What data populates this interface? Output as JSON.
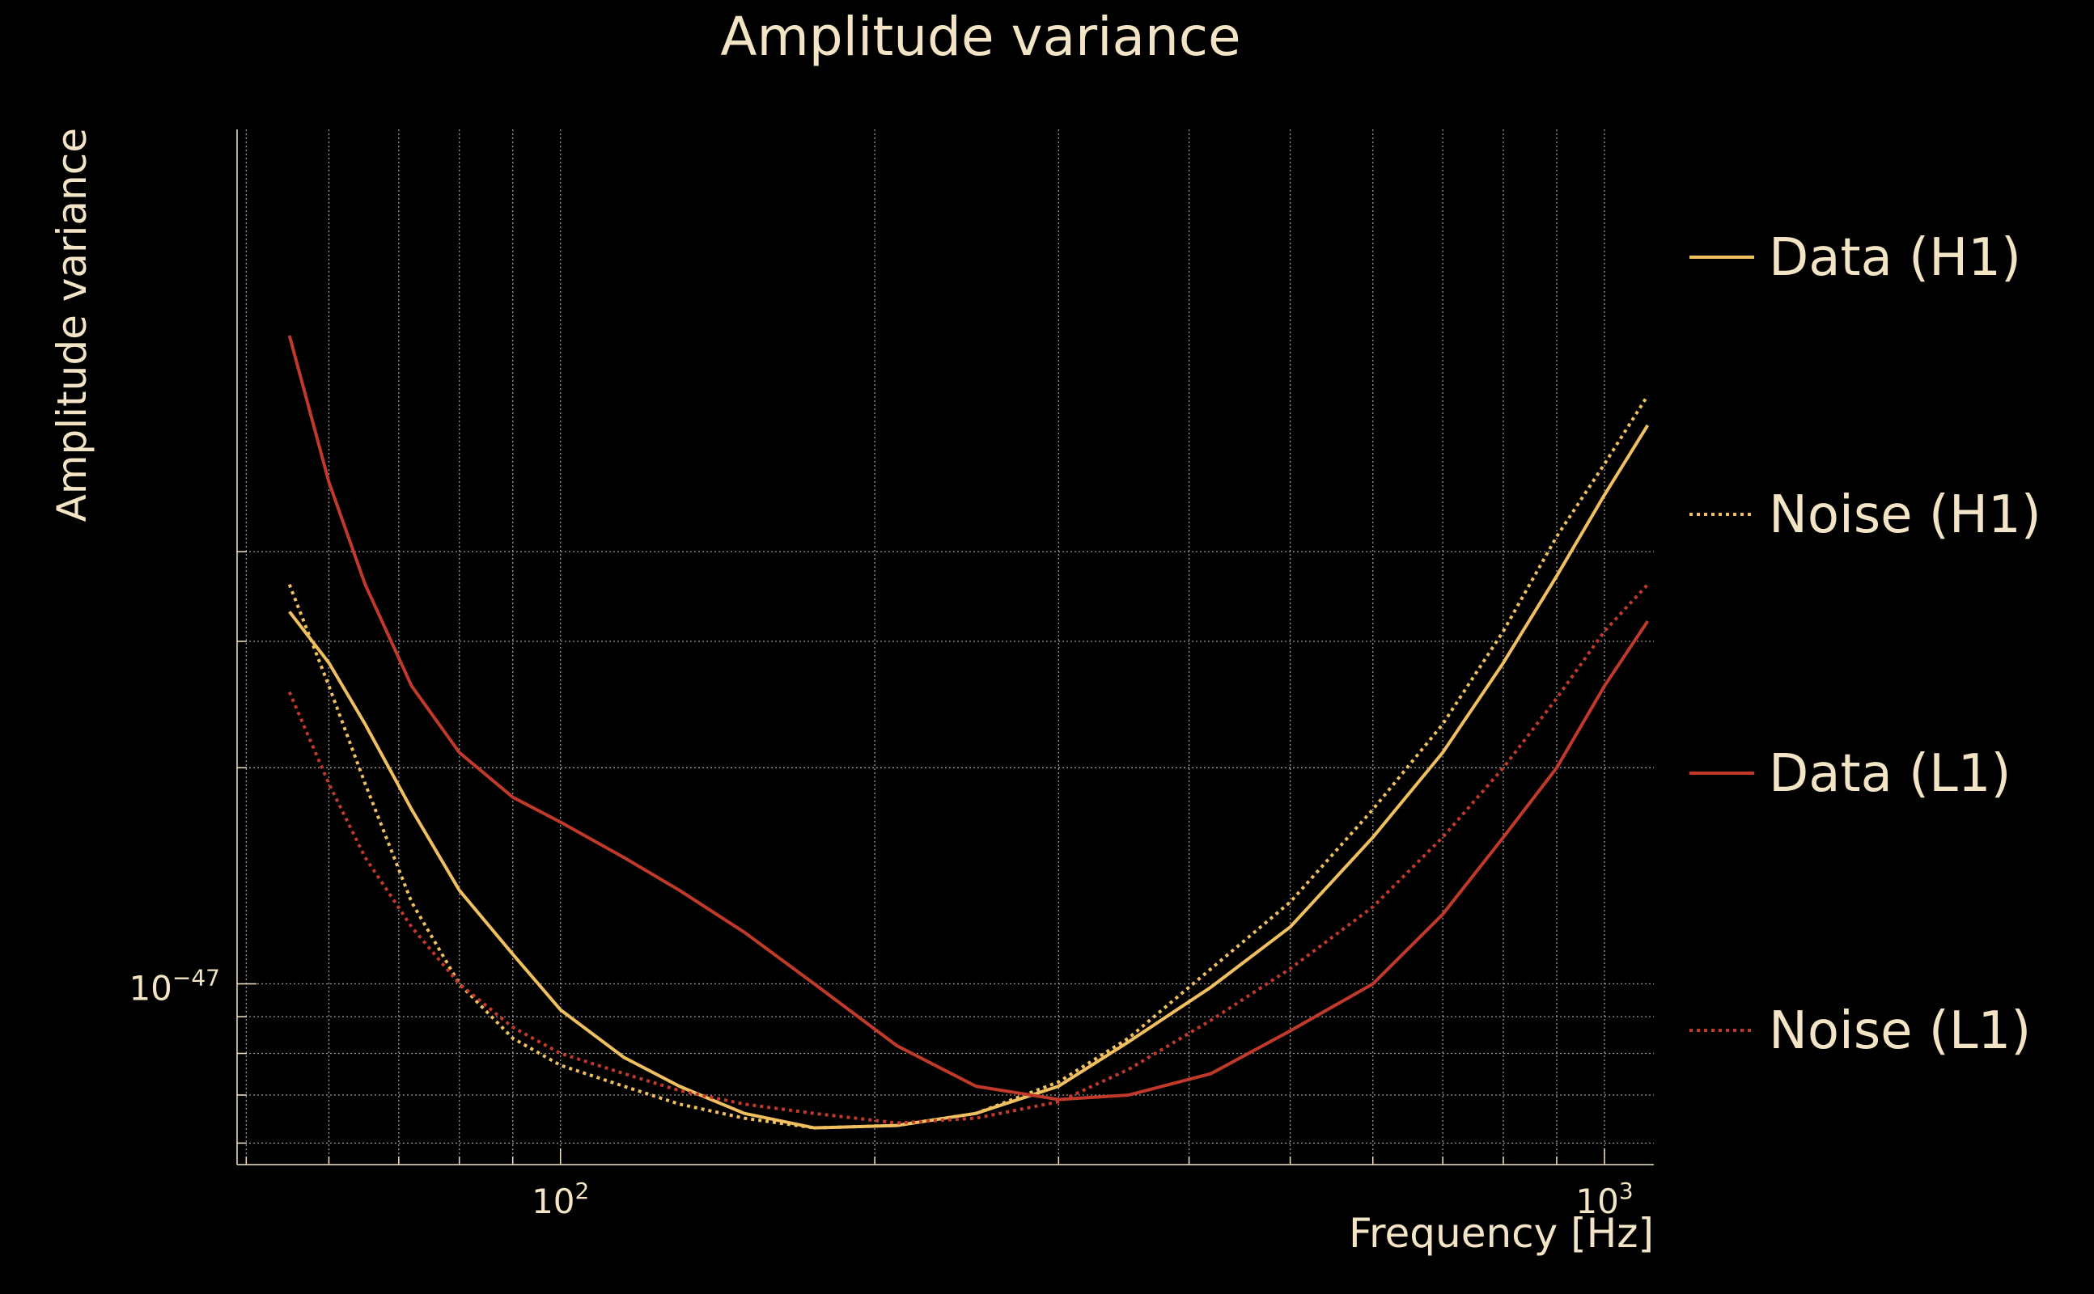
{
  "chart_data": {
    "type": "line",
    "title": "Amplitude variance",
    "xlabel": "Frequency [Hz]",
    "ylabel": "Amplitude variance",
    "x_scale": "log",
    "y_scale": "log",
    "xlim": [
      49,
      1115
    ],
    "ylim": [
      5.6e-48,
      1.55e-46
    ],
    "x_major_ticks": [
      {
        "value": 100,
        "label": "10",
        "exp": "2"
      },
      {
        "value": 1000,
        "label": "10",
        "exp": "3"
      }
    ],
    "y_major_ticks": [
      {
        "value": 1e-47,
        "label": "10",
        "exp": "−47"
      }
    ],
    "x_minor_ticks": [
      50,
      60,
      70,
      80,
      90,
      200,
      300,
      400,
      500,
      600,
      700,
      800,
      900
    ],
    "y_minor_ticks": [
      6e-48,
      7e-48,
      8e-48,
      9e-48,
      2e-47,
      3e-47,
      4e-47
    ],
    "grid": true,
    "legend_placement": "outside-right",
    "series": [
      {
        "name": "Data (H1)",
        "color": "#f0c060",
        "style": "solid",
        "x": [
          55,
          60,
          65,
          72,
          80,
          90,
          100,
          115,
          130,
          150,
          175,
          210,
          250,
          300,
          350,
          420,
          500,
          600,
          700,
          800,
          900,
          1000,
          1100
        ],
        "y": [
          3.3e-47,
          2.8e-47,
          2.3e-47,
          1.75e-47,
          1.35e-47,
          1.1e-47,
          9.2e-48,
          7.9e-48,
          7.2e-48,
          6.6e-48,
          6.3e-48,
          6.35e-48,
          6.6e-48,
          7.2e-48,
          8.3e-48,
          9.9e-48,
          1.2e-47,
          1.6e-47,
          2.1e-47,
          2.8e-47,
          3.7e-47,
          4.8e-47,
          6e-47
        ]
      },
      {
        "name": "Noise (H1)",
        "color": "#f0c060",
        "style": "dotted",
        "x": [
          55,
          60,
          65,
          72,
          80,
          90,
          100,
          115,
          130,
          150,
          175,
          210,
          250,
          300,
          350,
          420,
          500,
          600,
          700,
          800,
          900,
          1000,
          1100
        ],
        "y": [
          3.6e-47,
          2.6e-47,
          1.9e-47,
          1.3e-47,
          1e-47,
          8.4e-48,
          7.7e-48,
          7.2e-48,
          6.8e-48,
          6.5e-48,
          6.3e-48,
          6.35e-48,
          6.6e-48,
          7.3e-48,
          8.4e-48,
          1.05e-47,
          1.3e-47,
          1.75e-47,
          2.3e-47,
          3.1e-47,
          4.2e-47,
          5.3e-47,
          6.6e-47
        ]
      },
      {
        "name": "Data (L1)",
        "color": "#c0392b",
        "style": "solid",
        "x": [
          55,
          60,
          65,
          72,
          80,
          90,
          100,
          115,
          130,
          150,
          175,
          210,
          250,
          300,
          350,
          420,
          500,
          600,
          700,
          800,
          900,
          1000,
          1100
        ],
        "y": [
          8e-47,
          5e-47,
          3.6e-47,
          2.6e-47,
          2.1e-47,
          1.82e-47,
          1.68e-47,
          1.5e-47,
          1.35e-47,
          1.18e-47,
          1e-47,
          8.2e-48,
          7.2e-48,
          6.9e-48,
          7e-48,
          7.5e-48,
          8.6e-48,
          1e-47,
          1.25e-47,
          1.6e-47,
          2e-47,
          2.6e-47,
          3.2e-47
        ]
      },
      {
        "name": "Noise (L1)",
        "color": "#c0392b",
        "style": "dotted",
        "x": [
          55,
          60,
          65,
          72,
          80,
          90,
          100,
          115,
          130,
          150,
          175,
          210,
          250,
          300,
          350,
          420,
          500,
          600,
          700,
          800,
          900,
          1000,
          1100
        ],
        "y": [
          2.55e-47,
          1.9e-47,
          1.5e-47,
          1.2e-47,
          1e-47,
          8.7e-48,
          8e-48,
          7.5e-48,
          7.1e-48,
          6.8e-48,
          6.6e-48,
          6.4e-48,
          6.5e-48,
          6.85e-48,
          7.6e-48,
          8.9e-48,
          1.05e-47,
          1.28e-47,
          1.6e-47,
          2e-47,
          2.5e-47,
          3.1e-47,
          3.6e-47
        ]
      }
    ]
  }
}
